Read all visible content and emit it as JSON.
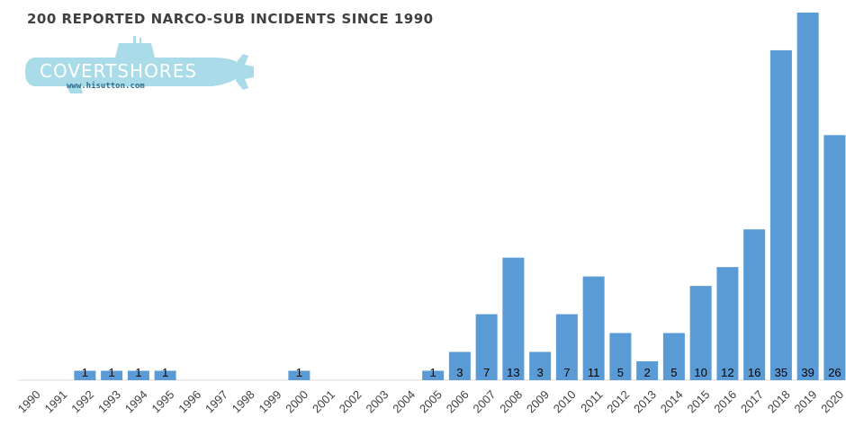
{
  "chart_data": {
    "type": "bar",
    "title": "200 REPORTED NARCO-SUB INCIDENTS SINCE 1990",
    "xlabel": "",
    "ylabel": "",
    "ylim": [
      0,
      39
    ],
    "grid": false,
    "legend": "none",
    "colors": {
      "bar": "#5b9bd5",
      "title": "#404040",
      "axis": "#d9d9d9"
    },
    "categories": [
      "1990",
      "1991",
      "1992",
      "1993",
      "1994",
      "1995",
      "1996",
      "1997",
      "1998",
      "1999",
      "2000",
      "2001",
      "2002",
      "2003",
      "2004",
      "2005",
      "2006",
      "2007",
      "2008",
      "2009",
      "2010",
      "2011",
      "2012",
      "2013",
      "2014",
      "2015",
      "2016",
      "2017",
      "2018",
      "2019",
      "2020"
    ],
    "values": [
      0,
      0,
      1,
      1,
      1,
      1,
      0,
      0,
      0,
      0,
      1,
      0,
      0,
      0,
      0,
      1,
      3,
      7,
      13,
      3,
      7,
      11,
      5,
      2,
      5,
      10,
      12,
      16,
      35,
      39,
      26
    ],
    "data_labels": [
      "",
      "",
      "1",
      "1",
      "1",
      "1",
      "",
      "",
      "",
      "",
      "1",
      "",
      "",
      "",
      "",
      "1",
      "3",
      "7",
      "13",
      "3",
      "7",
      "11",
      "5",
      "2",
      "5",
      "10",
      "12",
      "16",
      "35",
      "39",
      "26"
    ]
  },
  "logo": {
    "name": "COVERTSHORES",
    "url": "www.hisutton.com",
    "icon": "submarine-icon",
    "color": "#a9dbe8"
  }
}
